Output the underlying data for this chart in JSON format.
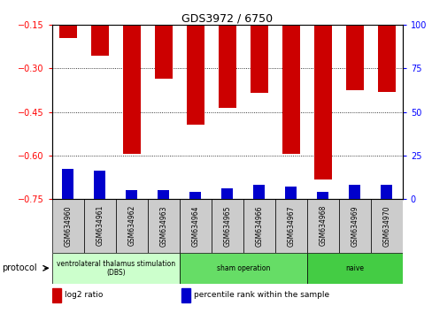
{
  "title": "GDS3972 / 6750",
  "samples": [
    "GSM634960",
    "GSM634961",
    "GSM634962",
    "GSM634963",
    "GSM634964",
    "GSM634965",
    "GSM634966",
    "GSM634967",
    "GSM634968",
    "GSM634969",
    "GSM634970"
  ],
  "log2_ratio": [
    -0.195,
    -0.255,
    -0.595,
    -0.335,
    -0.495,
    -0.435,
    -0.385,
    -0.595,
    -0.685,
    -0.375,
    -0.38
  ],
  "percentile_rank": [
    17,
    16,
    5,
    5,
    4,
    6,
    8,
    7,
    4,
    8,
    8
  ],
  "ylim_left": [
    -0.75,
    -0.15
  ],
  "ylim_right": [
    0,
    100
  ],
  "yticks_left": [
    -0.75,
    -0.6,
    -0.45,
    -0.3,
    -0.15
  ],
  "yticks_right": [
    0,
    25,
    50,
    75,
    100
  ],
  "bar_width": 0.55,
  "blue_bar_width": 0.35,
  "red_color": "#cc0000",
  "blue_color": "#0000cc",
  "protocol_groups": [
    {
      "label": "ventrolateral thalamus stimulation\n(DBS)",
      "indices": [
        0,
        1,
        2,
        3
      ],
      "color": "#ccffcc"
    },
    {
      "label": "sham operation",
      "indices": [
        4,
        5,
        6,
        7
      ],
      "color": "#66dd66"
    },
    {
      "label": "naive",
      "indices": [
        8,
        9,
        10
      ],
      "color": "#44cc44"
    }
  ],
  "legend_items": [
    {
      "label": "log2 ratio",
      "color": "#cc0000"
    },
    {
      "label": "percentile rank within the sample",
      "color": "#0000cc"
    }
  ],
  "sample_box_color": "#cccccc",
  "grid_color": "black",
  "background_color": "white"
}
